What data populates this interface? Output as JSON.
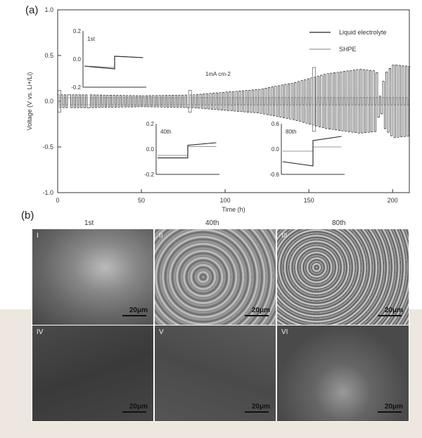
{
  "panel_a_label": "(a)",
  "panel_b_label": "(b)",
  "chart_data": {
    "type": "line",
    "xlabel": "Time (h)",
    "ylabel": "Voltage (V vs. Li+/Li)",
    "xlim": [
      0,
      210
    ],
    "ylim": [
      -1.0,
      1.0
    ],
    "xticks": [
      "0",
      "50",
      "100",
      "150",
      "200"
    ],
    "yticks": [
      "1.0",
      "0.5",
      "0.0",
      "-0.5",
      "-1.0"
    ],
    "annotation": "1mA cm-2",
    "legend": "top-right",
    "series": [
      {
        "name": "Liquid electrolyte",
        "color": "#222222",
        "envelope_time": [
          0,
          20,
          50,
          80,
          100,
          120,
          140,
          160,
          180,
          190,
          192,
          195,
          200,
          210
        ],
        "envelope_amplitude": [
          0.07,
          0.07,
          0.06,
          0.07,
          0.1,
          0.13,
          0.2,
          0.3,
          0.35,
          0.33,
          0.05,
          0.3,
          0.4,
          0.38
        ]
      },
      {
        "name": "SHPE",
        "color": "#999999",
        "envelope_time": [
          0,
          210
        ],
        "envelope_amplitude": [
          0.04,
          0.04
        ]
      }
    ],
    "insets": [
      {
        "label": "1st",
        "yticks": [
          "0.2",
          "0.0",
          "-0.2"
        ],
        "ylim": [
          -0.2,
          0.2
        ],
        "liquid": [
          [
            -0.05,
            -0.07
          ],
          [
            0.02,
            0.01
          ]
        ],
        "shpe": [
          [
            -0.05,
            -0.06
          ],
          [
            0.02,
            0.01
          ]
        ]
      },
      {
        "label": "40th",
        "yticks": [
          "0.2",
          "0.0",
          "-0.2"
        ],
        "ylim": [
          -0.2,
          0.2
        ],
        "liquid": [
          [
            -0.07,
            -0.07
          ],
          [
            0.03,
            0.05
          ]
        ],
        "shpe": [
          [
            -0.05,
            -0.05
          ],
          [
            0.02,
            0.02
          ]
        ]
      },
      {
        "label": "80th",
        "yticks": [
          "0.6",
          "0.0",
          "-0.6"
        ],
        "ylim": [
          -0.6,
          0.6
        ],
        "liquid": [
          [
            -0.3,
            -0.4
          ],
          [
            0.2,
            0.3
          ]
        ],
        "shpe": [
          [
            -0.05,
            -0.05
          ],
          [
            0.05,
            0.05
          ]
        ]
      }
    ]
  },
  "sem": {
    "columns": [
      "1st",
      "40th",
      "80th"
    ],
    "panels": [
      {
        "roman": "I",
        "scale": "20μm"
      },
      {
        "roman": "II",
        "scale": "20μm"
      },
      {
        "roman": "III",
        "scale": "20μm"
      },
      {
        "roman": "IV",
        "scale": "20μm"
      },
      {
        "roman": "V",
        "scale": "20μm"
      },
      {
        "roman": "VI",
        "scale": "20μm"
      }
    ]
  }
}
